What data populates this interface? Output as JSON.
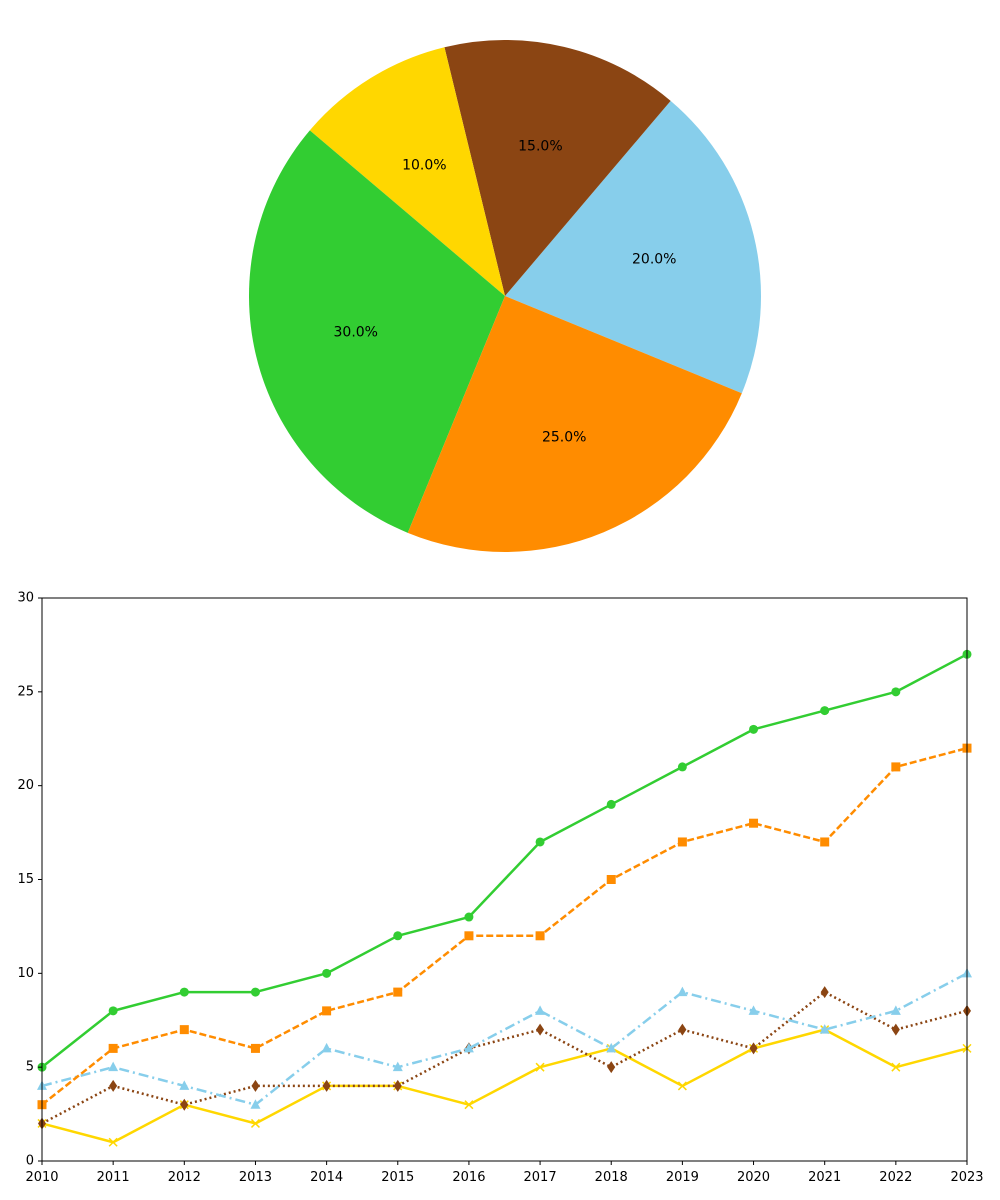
{
  "chart_data": [
    {
      "type": "pie",
      "start_angle_deg": -22.32,
      "direction": "counterclockwise",
      "labels": [
        "",
        "",
        "",
        "",
        ""
      ],
      "values": [
        20,
        15,
        10,
        30,
        25
      ],
      "value_labels": [
        "20.0%",
        "15.0%",
        "10.0%",
        "30.0%",
        "25.0%"
      ],
      "colors": [
        "#87CEEB",
        "#8B4513",
        "#FFD700",
        "#32CD32",
        "#FF8C00"
      ]
    },
    {
      "type": "line",
      "x": [
        2010,
        2011,
        2012,
        2013,
        2014,
        2015,
        2016,
        2017,
        2018,
        2019,
        2020,
        2021,
        2022,
        2023
      ],
      "x_tick_labels": [
        "2010",
        "2011",
        "2012",
        "2013",
        "2014",
        "2015",
        "2016",
        "2017",
        "2018",
        "2019",
        "2020",
        "2021",
        "2022",
        "2023"
      ],
      "xlim": [
        2010,
        2023
      ],
      "ylim": [
        0,
        30
      ],
      "y_ticks": [
        0,
        5,
        10,
        15,
        20,
        25,
        30
      ],
      "y_tick_labels": [
        "0",
        "5",
        "10",
        "15",
        "20",
        "25",
        "30"
      ],
      "grid": false,
      "legend": "none",
      "series": [
        {
          "values": [
            5,
            8,
            9,
            9,
            10,
            12,
            13,
            17,
            19,
            21,
            23,
            24,
            25,
            27
          ],
          "color": "#32CD32",
          "line_style": "solid",
          "marker": "circle"
        },
        {
          "values": [
            3,
            6,
            7,
            6,
            8,
            9,
            12,
            12,
            15,
            17,
            18,
            17,
            21,
            22
          ],
          "color": "#FF8C00",
          "line_style": "dashed",
          "marker": "square"
        },
        {
          "values": [
            4,
            5,
            4,
            3,
            6,
            5,
            6,
            8,
            6,
            9,
            8,
            7,
            8,
            10
          ],
          "color": "#87CEEB",
          "line_style": "dash-dot",
          "marker": "triangle"
        },
        {
          "values": [
            2,
            4,
            3,
            4,
            4,
            4,
            6,
            7,
            5,
            7,
            6,
            9,
            7,
            8
          ],
          "color": "#8B4513",
          "line_style": "dotted",
          "marker": "diamond"
        },
        {
          "values": [
            2,
            1,
            3,
            2,
            4,
            4,
            3,
            5,
            6,
            4,
            6,
            7,
            5,
            6
          ],
          "color": "#FFD700",
          "line_style": "solid",
          "marker": "x"
        }
      ]
    }
  ]
}
